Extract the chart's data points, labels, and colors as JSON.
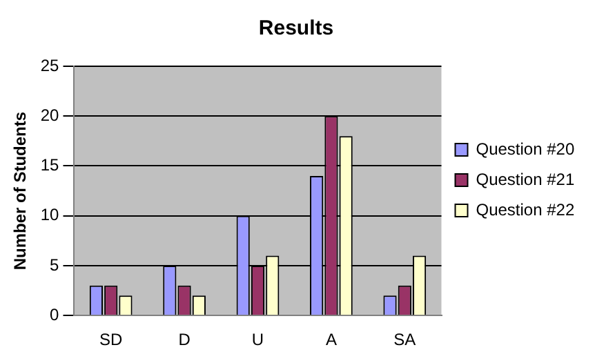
{
  "chart_data": {
    "type": "bar",
    "title": "Results",
    "ylabel": "Number of Students",
    "categories": [
      "SD",
      "D",
      "U",
      "A",
      "SA"
    ],
    "series": [
      {
        "name": "Question #20",
        "color": "#9999ff",
        "values": [
          3,
          5,
          10,
          14,
          2
        ]
      },
      {
        "name": "Question #21",
        "color": "#993366",
        "values": [
          3,
          3,
          5,
          20,
          3
        ]
      },
      {
        "name": "Question #22",
        "color": "#ffffcc",
        "values": [
          2,
          2,
          6,
          18,
          6
        ]
      }
    ],
    "ylim": [
      0,
      25
    ],
    "yticks": [
      0,
      5,
      10,
      15,
      20,
      25
    ],
    "grid": "y",
    "legend": "right"
  }
}
